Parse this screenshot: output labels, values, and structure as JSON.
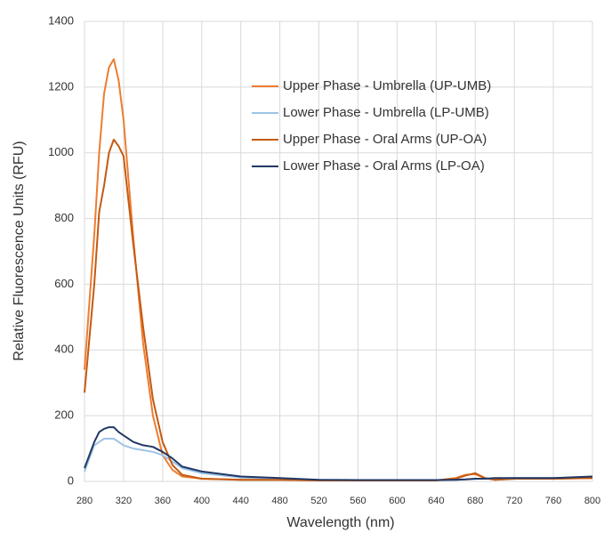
{
  "chart_data": {
    "type": "line",
    "xlabel": "Wavelength (nm)",
    "ylabel": "Relative Fluorescence Units (RFU)",
    "x": [
      280,
      290,
      295,
      300,
      305,
      310,
      315,
      320,
      330,
      340,
      350,
      360,
      370,
      380,
      400,
      440,
      480,
      520,
      560,
      600,
      640,
      660,
      670,
      680,
      690,
      700,
      720,
      760,
      800
    ],
    "series": [
      {
        "name": "Upper Phase - Umbrella (UP-UMB)",
        "color": "#ed7d31",
        "values": [
          340,
          750,
          1000,
          1180,
          1260,
          1285,
          1220,
          1100,
          740,
          420,
          200,
          80,
          35,
          15,
          8,
          5,
          5,
          3,
          3,
          3,
          3,
          10,
          20,
          22,
          10,
          5,
          8,
          8,
          10
        ]
      },
      {
        "name": "Lower Phase - Umbrella (LP-UMB)",
        "color": "#9dc3e6",
        "values": [
          30,
          110,
          120,
          130,
          130,
          130,
          120,
          110,
          100,
          95,
          90,
          80,
          60,
          40,
          25,
          12,
          8,
          5,
          4,
          4,
          4,
          5,
          6,
          8,
          8,
          8,
          10,
          10,
          12
        ]
      },
      {
        "name": "Upper Phase - Oral Arms (UP-OA)",
        "color": "#c55a11",
        "values": [
          270,
          600,
          820,
          900,
          1000,
          1040,
          1020,
          990,
          720,
          470,
          250,
          120,
          50,
          20,
          8,
          5,
          5,
          3,
          3,
          3,
          3,
          8,
          18,
          25,
          10,
          5,
          8,
          8,
          10
        ]
      },
      {
        "name": "Lower Phase - Oral Arms (LP-OA)",
        "color": "#203864",
        "values": [
          40,
          120,
          150,
          160,
          165,
          165,
          150,
          140,
          120,
          110,
          105,
          90,
          70,
          45,
          30,
          15,
          10,
          5,
          4,
          4,
          4,
          5,
          6,
          8,
          8,
          10,
          10,
          10,
          15
        ]
      }
    ],
    "xlim": [
      280,
      800
    ],
    "xticks": [
      280,
      320,
      360,
      400,
      440,
      480,
      520,
      560,
      600,
      640,
      680,
      720,
      760,
      800
    ],
    "ylim": [
      0,
      1400
    ],
    "yticks": [
      0,
      200,
      400,
      600,
      800,
      1000,
      1200,
      1400
    ],
    "grid": true
  }
}
